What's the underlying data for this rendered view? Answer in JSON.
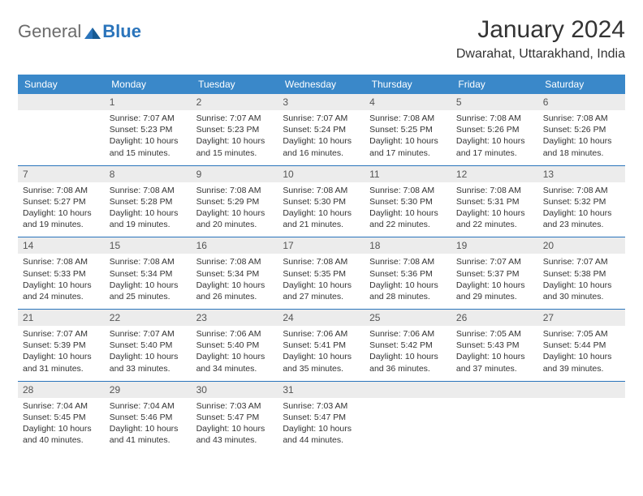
{
  "brand": {
    "text1": "General",
    "text2": "Blue"
  },
  "title": "January 2024",
  "location": "Dwarahat, Uttarakhand, India",
  "colors": {
    "header_bg": "#3a88c9",
    "header_text": "#ffffff",
    "rule": "#2a74bb",
    "daynum_bg": "#ececec",
    "text": "#333333",
    "brand_gray": "#6b6b6b",
    "brand_blue": "#2a74bb"
  },
  "day_headers": [
    "Sunday",
    "Monday",
    "Tuesday",
    "Wednesday",
    "Thursday",
    "Friday",
    "Saturday"
  ],
  "start_weekday": 1,
  "days": [
    {
      "n": 1,
      "sunrise": "7:07 AM",
      "sunset": "5:23 PM",
      "daylight": "10 hours and 15 minutes."
    },
    {
      "n": 2,
      "sunrise": "7:07 AM",
      "sunset": "5:23 PM",
      "daylight": "10 hours and 15 minutes."
    },
    {
      "n": 3,
      "sunrise": "7:07 AM",
      "sunset": "5:24 PM",
      "daylight": "10 hours and 16 minutes."
    },
    {
      "n": 4,
      "sunrise": "7:08 AM",
      "sunset": "5:25 PM",
      "daylight": "10 hours and 17 minutes."
    },
    {
      "n": 5,
      "sunrise": "7:08 AM",
      "sunset": "5:26 PM",
      "daylight": "10 hours and 17 minutes."
    },
    {
      "n": 6,
      "sunrise": "7:08 AM",
      "sunset": "5:26 PM",
      "daylight": "10 hours and 18 minutes."
    },
    {
      "n": 7,
      "sunrise": "7:08 AM",
      "sunset": "5:27 PM",
      "daylight": "10 hours and 19 minutes."
    },
    {
      "n": 8,
      "sunrise": "7:08 AM",
      "sunset": "5:28 PM",
      "daylight": "10 hours and 19 minutes."
    },
    {
      "n": 9,
      "sunrise": "7:08 AM",
      "sunset": "5:29 PM",
      "daylight": "10 hours and 20 minutes."
    },
    {
      "n": 10,
      "sunrise": "7:08 AM",
      "sunset": "5:30 PM",
      "daylight": "10 hours and 21 minutes."
    },
    {
      "n": 11,
      "sunrise": "7:08 AM",
      "sunset": "5:30 PM",
      "daylight": "10 hours and 22 minutes."
    },
    {
      "n": 12,
      "sunrise": "7:08 AM",
      "sunset": "5:31 PM",
      "daylight": "10 hours and 22 minutes."
    },
    {
      "n": 13,
      "sunrise": "7:08 AM",
      "sunset": "5:32 PM",
      "daylight": "10 hours and 23 minutes."
    },
    {
      "n": 14,
      "sunrise": "7:08 AM",
      "sunset": "5:33 PM",
      "daylight": "10 hours and 24 minutes."
    },
    {
      "n": 15,
      "sunrise": "7:08 AM",
      "sunset": "5:34 PM",
      "daylight": "10 hours and 25 minutes."
    },
    {
      "n": 16,
      "sunrise": "7:08 AM",
      "sunset": "5:34 PM",
      "daylight": "10 hours and 26 minutes."
    },
    {
      "n": 17,
      "sunrise": "7:08 AM",
      "sunset": "5:35 PM",
      "daylight": "10 hours and 27 minutes."
    },
    {
      "n": 18,
      "sunrise": "7:08 AM",
      "sunset": "5:36 PM",
      "daylight": "10 hours and 28 minutes."
    },
    {
      "n": 19,
      "sunrise": "7:07 AM",
      "sunset": "5:37 PM",
      "daylight": "10 hours and 29 minutes."
    },
    {
      "n": 20,
      "sunrise": "7:07 AM",
      "sunset": "5:38 PM",
      "daylight": "10 hours and 30 minutes."
    },
    {
      "n": 21,
      "sunrise": "7:07 AM",
      "sunset": "5:39 PM",
      "daylight": "10 hours and 31 minutes."
    },
    {
      "n": 22,
      "sunrise": "7:07 AM",
      "sunset": "5:40 PM",
      "daylight": "10 hours and 33 minutes."
    },
    {
      "n": 23,
      "sunrise": "7:06 AM",
      "sunset": "5:40 PM",
      "daylight": "10 hours and 34 minutes."
    },
    {
      "n": 24,
      "sunrise": "7:06 AM",
      "sunset": "5:41 PM",
      "daylight": "10 hours and 35 minutes."
    },
    {
      "n": 25,
      "sunrise": "7:06 AM",
      "sunset": "5:42 PM",
      "daylight": "10 hours and 36 minutes."
    },
    {
      "n": 26,
      "sunrise": "7:05 AM",
      "sunset": "5:43 PM",
      "daylight": "10 hours and 37 minutes."
    },
    {
      "n": 27,
      "sunrise": "7:05 AM",
      "sunset": "5:44 PM",
      "daylight": "10 hours and 39 minutes."
    },
    {
      "n": 28,
      "sunrise": "7:04 AM",
      "sunset": "5:45 PM",
      "daylight": "10 hours and 40 minutes."
    },
    {
      "n": 29,
      "sunrise": "7:04 AM",
      "sunset": "5:46 PM",
      "daylight": "10 hours and 41 minutes."
    },
    {
      "n": 30,
      "sunrise": "7:03 AM",
      "sunset": "5:47 PM",
      "daylight": "10 hours and 43 minutes."
    },
    {
      "n": 31,
      "sunrise": "7:03 AM",
      "sunset": "5:47 PM",
      "daylight": "10 hours and 44 minutes."
    }
  ],
  "labels": {
    "sunrise": "Sunrise: ",
    "sunset": "Sunset: ",
    "daylight": "Daylight: "
  }
}
